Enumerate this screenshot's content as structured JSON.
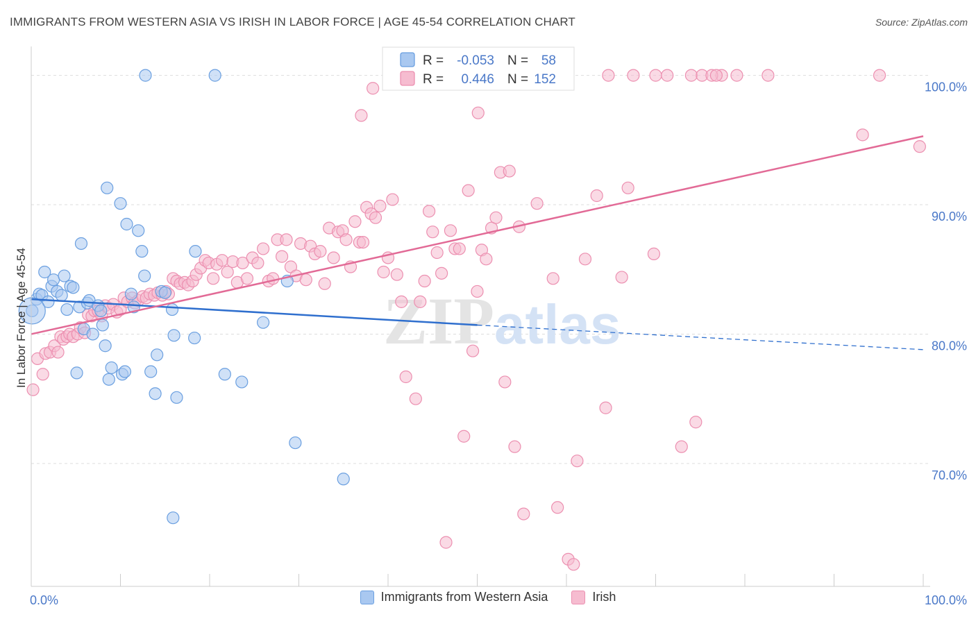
{
  "header": {
    "title": "IMMIGRANTS FROM WESTERN ASIA VS IRISH IN LABOR FORCE | AGE 45-54 CORRELATION CHART",
    "source": "Source: ZipAtlas.com"
  },
  "watermark": {
    "part1": "ZIP",
    "part2": "atlas"
  },
  "colors": {
    "blue_fill": "#a9c8f0",
    "blue_stroke": "#6a9fe0",
    "blue_line": "#2f6fce",
    "pink_fill": "#f6bcd0",
    "pink_stroke": "#ec8fb0",
    "pink_line": "#e26a96",
    "grid": "#dddddd",
    "axis_text": "#4a78c8"
  },
  "chart_data": {
    "type": "scatter",
    "title": "IMMIGRANTS FROM WESTERN ASIA VS IRISH IN LABOR FORCE | AGE 45-54 CORRELATION CHART",
    "xlabel": "",
    "ylabel": "In Labor Force | Age 45-54",
    "xlim": [
      0,
      100
    ],
    "ylim": [
      60.5,
      102.5
    ],
    "x_tick_labels": [
      "0.0%",
      "100.0%"
    ],
    "y_ticks": [
      70,
      80,
      90,
      100
    ],
    "y_tick_labels": [
      "70.0%",
      "80.0%",
      "90.0%",
      "100.0%"
    ],
    "grid": true,
    "legend_position": "top-center",
    "legend": [
      {
        "r_label": "R =",
        "r_value": "-0.053",
        "n_label": "N =",
        "n_value": "58"
      },
      {
        "r_label": "R =",
        "r_value": "0.446",
        "n_label": "N =",
        "n_value": "152"
      }
    ],
    "series": [
      {
        "name": "Immigrants from Western Asia",
        "color": "#a9c8f0",
        "trend": {
          "x0": 0,
          "y0": 82.7,
          "x1": 50,
          "y1": 80.7,
          "dash_to_x": 100,
          "dash_to_y": 78.8
        },
        "points": [
          [
            0.1,
            81.8
          ],
          [
            0.6,
            82.7
          ],
          [
            0.9,
            83.1
          ],
          [
            1.2,
            83.0
          ],
          [
            1.5,
            84.8
          ],
          [
            1.9,
            82.5
          ],
          [
            2.3,
            83.7
          ],
          [
            2.5,
            84.2
          ],
          [
            2.9,
            83.3
          ],
          [
            3.4,
            83.0
          ],
          [
            3.7,
            84.5
          ],
          [
            4.0,
            81.9
          ],
          [
            4.4,
            83.7
          ],
          [
            4.7,
            83.6
          ],
          [
            5.1,
            77.0
          ],
          [
            5.4,
            82.1
          ],
          [
            5.6,
            87.0
          ],
          [
            5.9,
            80.4
          ],
          [
            6.3,
            82.4
          ],
          [
            6.5,
            82.6
          ],
          [
            6.9,
            80.0
          ],
          [
            7.5,
            82.2
          ],
          [
            7.8,
            81.8
          ],
          [
            8.0,
            80.7
          ],
          [
            8.3,
            79.1
          ],
          [
            8.5,
            91.3
          ],
          [
            8.7,
            76.5
          ],
          [
            9.0,
            77.4
          ],
          [
            10.0,
            90.1
          ],
          [
            10.2,
            76.9
          ],
          [
            10.5,
            77.1
          ],
          [
            10.7,
            88.5
          ],
          [
            11.2,
            83.1
          ],
          [
            11.5,
            82.1
          ],
          [
            12.0,
            88.0
          ],
          [
            12.4,
            86.4
          ],
          [
            12.7,
            84.5
          ],
          [
            12.8,
            100.0
          ],
          [
            13.4,
            77.1
          ],
          [
            13.9,
            75.4
          ],
          [
            14.1,
            78.4
          ],
          [
            14.6,
            83.3
          ],
          [
            15.0,
            83.2
          ],
          [
            15.8,
            81.9
          ],
          [
            15.9,
            65.8
          ],
          [
            16.0,
            79.9
          ],
          [
            16.3,
            75.1
          ],
          [
            18.3,
            79.7
          ],
          [
            18.4,
            86.4
          ],
          [
            20.6,
            100.0
          ],
          [
            21.7,
            76.9
          ],
          [
            23.6,
            76.3
          ],
          [
            26.0,
            80.9
          ],
          [
            28.7,
            84.1
          ],
          [
            29.6,
            71.6
          ],
          [
            35.0,
            68.8
          ]
        ]
      },
      {
        "name": "Irish",
        "color": "#f6bcd0",
        "trend": {
          "x0": 0,
          "y0": 80.0,
          "x1": 100,
          "y1": 95.3
        },
        "points": [
          [
            0.2,
            75.7
          ],
          [
            0.7,
            78.1
          ],
          [
            1.3,
            76.9
          ],
          [
            1.6,
            78.5
          ],
          [
            2.1,
            78.6
          ],
          [
            2.6,
            79.1
          ],
          [
            3.0,
            78.6
          ],
          [
            3.3,
            79.8
          ],
          [
            3.6,
            79.6
          ],
          [
            4.0,
            79.8
          ],
          [
            4.3,
            80.0
          ],
          [
            4.7,
            79.8
          ],
          [
            5.2,
            80.0
          ],
          [
            5.5,
            80.5
          ],
          [
            6.0,
            80.1
          ],
          [
            6.4,
            81.5
          ],
          [
            6.8,
            81.4
          ],
          [
            7.1,
            81.8
          ],
          [
            7.5,
            81.8
          ],
          [
            7.9,
            81.4
          ],
          [
            8.3,
            82.2
          ],
          [
            8.7,
            82.0
          ],
          [
            9.2,
            82.3
          ],
          [
            9.6,
            81.7
          ],
          [
            10.0,
            81.9
          ],
          [
            10.4,
            82.8
          ],
          [
            10.8,
            82.5
          ],
          [
            11.3,
            82.8
          ],
          [
            11.6,
            82.4
          ],
          [
            12.0,
            82.6
          ],
          [
            12.5,
            82.9
          ],
          [
            12.9,
            82.8
          ],
          [
            13.3,
            83.1
          ],
          [
            13.8,
            83.0
          ],
          [
            14.2,
            83.2
          ],
          [
            14.7,
            83.0
          ],
          [
            15.1,
            83.3
          ],
          [
            15.4,
            83.1
          ],
          [
            15.9,
            84.3
          ],
          [
            16.3,
            84.1
          ],
          [
            16.7,
            83.9
          ],
          [
            17.2,
            84.0
          ],
          [
            17.6,
            83.8
          ],
          [
            18.1,
            84.1
          ],
          [
            18.5,
            84.6
          ],
          [
            19.0,
            85.1
          ],
          [
            19.5,
            85.7
          ],
          [
            19.9,
            85.5
          ],
          [
            20.4,
            84.3
          ],
          [
            20.8,
            85.4
          ],
          [
            21.4,
            85.7
          ],
          [
            22.0,
            84.8
          ],
          [
            22.6,
            85.6
          ],
          [
            23.1,
            84.0
          ],
          [
            23.7,
            85.5
          ],
          [
            24.2,
            84.3
          ],
          [
            24.8,
            85.9
          ],
          [
            25.4,
            85.5
          ],
          [
            26.0,
            86.6
          ],
          [
            26.6,
            84.1
          ],
          [
            27.1,
            84.3
          ],
          [
            27.6,
            87.3
          ],
          [
            28.1,
            86.0
          ],
          [
            28.6,
            87.3
          ],
          [
            29.1,
            85.2
          ],
          [
            29.7,
            84.5
          ],
          [
            30.2,
            87.0
          ],
          [
            30.8,
            84.2
          ],
          [
            31.3,
            86.8
          ],
          [
            31.8,
            86.2
          ],
          [
            32.4,
            86.4
          ],
          [
            32.9,
            83.9
          ],
          [
            33.4,
            88.2
          ],
          [
            33.9,
            85.9
          ],
          [
            34.4,
            87.9
          ],
          [
            34.9,
            88.0
          ],
          [
            35.3,
            87.3
          ],
          [
            35.8,
            85.2
          ],
          [
            36.3,
            88.7
          ],
          [
            36.8,
            87.1
          ],
          [
            37.2,
            87.1
          ],
          [
            37.6,
            89.8
          ],
          [
            38.1,
            89.3
          ],
          [
            38.6,
            89.0
          ],
          [
            39.1,
            89.9
          ],
          [
            39.5,
            84.8
          ],
          [
            40.0,
            85.9
          ],
          [
            40.5,
            90.4
          ],
          [
            41.0,
            84.6
          ],
          [
            41.5,
            82.5
          ],
          [
            42.0,
            76.7
          ],
          [
            42.6,
            100.0
          ],
          [
            43.1,
            75.0
          ],
          [
            43.6,
            82.5
          ],
          [
            44.1,
            84.1
          ],
          [
            44.6,
            89.5
          ],
          [
            45.0,
            87.9
          ],
          [
            45.5,
            86.3
          ],
          [
            46.0,
            84.7
          ],
          [
            46.5,
            63.9
          ],
          [
            47.0,
            88.0
          ],
          [
            47.5,
            86.6
          ],
          [
            48.0,
            86.6
          ],
          [
            48.5,
            72.1
          ],
          [
            49.0,
            91.1
          ],
          [
            49.5,
            78.7
          ],
          [
            50.0,
            83.3
          ],
          [
            50.5,
            86.5
          ],
          [
            51.0,
            85.8
          ],
          [
            51.6,
            88.2
          ],
          [
            52.1,
            89.0
          ],
          [
            52.6,
            92.5
          ],
          [
            53.1,
            76.3
          ],
          [
            53.6,
            92.6
          ],
          [
            54.2,
            71.3
          ],
          [
            54.7,
            88.3
          ],
          [
            55.2,
            66.1
          ],
          [
            56.7,
            90.1
          ],
          [
            58.5,
            84.3
          ],
          [
            59.0,
            66.6
          ],
          [
            60.2,
            62.6
          ],
          [
            60.8,
            62.2
          ],
          [
            61.2,
            70.2
          ],
          [
            62.1,
            85.8
          ],
          [
            63.4,
            90.7
          ],
          [
            64.4,
            74.3
          ],
          [
            66.2,
            84.4
          ],
          [
            66.9,
            91.3
          ],
          [
            67.5,
            100.0
          ],
          [
            69.8,
            86.2
          ],
          [
            71.3,
            100.0
          ],
          [
            72.9,
            71.3
          ],
          [
            74.0,
            100.0
          ],
          [
            74.5,
            73.2
          ],
          [
            75.2,
            100.0
          ],
          [
            77.4,
            100.0
          ],
          [
            79.1,
            100.0
          ],
          [
            82.6,
            100.0
          ],
          [
            93.2,
            95.4
          ],
          [
            95.1,
            100.0
          ],
          [
            99.6,
            94.5
          ],
          [
            37.0,
            96.9
          ],
          [
            38.3,
            99.0
          ],
          [
            50.1,
            97.1
          ],
          [
            56.1,
            100.0
          ],
          [
            60.0,
            100.0
          ],
          [
            64.7,
            100.0
          ],
          [
            70.0,
            100.0
          ],
          [
            76.3,
            100.0
          ],
          [
            76.8,
            100.0
          ]
        ]
      }
    ]
  },
  "legend_bottom": [
    {
      "label": "Immigrants from Western Asia",
      "color": "#a9c8f0",
      "border": "#6a9fe0"
    },
    {
      "label": "Irish",
      "color": "#f6bcd0",
      "border": "#ec8fb0"
    }
  ]
}
